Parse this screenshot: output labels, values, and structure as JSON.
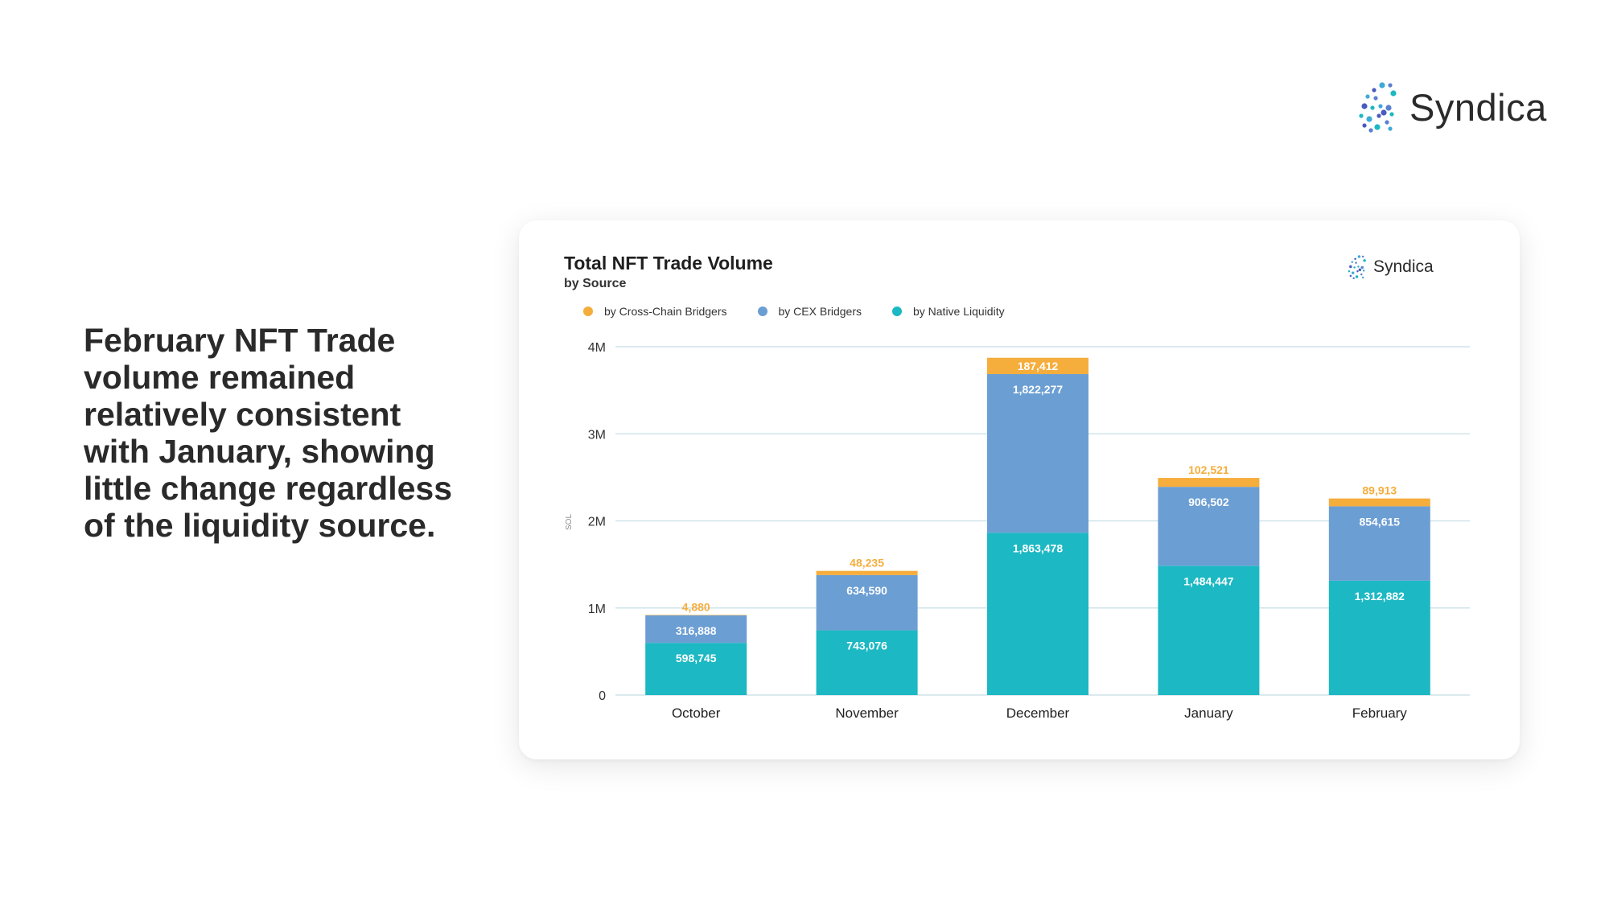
{
  "brand": {
    "name": "Syndica",
    "logo_icon": "syndica-logo-icon"
  },
  "headline": "February NFT Trade volume remained relatively consistent with January, showing little change regardless of the liquidity source.",
  "colors": {
    "cross_chain": "#f5ad3c",
    "cex": "#6b9ed3",
    "native": "#1cb8c3",
    "grid": "#cfe3ea",
    "axis_text": "#333333"
  },
  "chart_data": {
    "type": "bar",
    "stacked": true,
    "title": "Total NFT Trade Volume",
    "subtitle": "by Source",
    "ylabel": "SOL",
    "xlabel": "",
    "categories": [
      "October",
      "November",
      "December",
      "January",
      "February"
    ],
    "series": [
      {
        "name": "by Native Liquidity",
        "color": "#1cb8c3",
        "values": [
          598745,
          743076,
          1863478,
          1484447,
          1312882
        ],
        "labels": [
          "598,745",
          "743,076",
          "1,863,478",
          "1,484,447",
          "1,312,882"
        ]
      },
      {
        "name": "by CEX Bridgers",
        "color": "#6b9ed3",
        "values": [
          316888,
          634590,
          1822277,
          906502,
          854615
        ],
        "labels": [
          "316,888",
          "634,590",
          "1,822,277",
          "906,502",
          "854,615"
        ]
      },
      {
        "name": "by Cross-Chain Bridgers",
        "color": "#f5ad3c",
        "values": [
          4880,
          48235,
          187412,
          102521,
          89913
        ],
        "labels": [
          "4,880",
          "48,235",
          "187,412",
          "102,521",
          "89,913"
        ]
      }
    ],
    "legend_order": [
      "by Cross-Chain Bridgers",
      "by CEX Bridgers",
      "by Native Liquidity"
    ],
    "legend_position": "top-left",
    "ylim": [
      0,
      4000000
    ],
    "yticks": [
      {
        "value": 0,
        "label": "0"
      },
      {
        "value": 1000000,
        "label": "1M"
      },
      {
        "value": 2000000,
        "label": "2M"
      },
      {
        "value": 3000000,
        "label": "3M"
      },
      {
        "value": 4000000,
        "label": "4M"
      }
    ],
    "grid": true
  }
}
